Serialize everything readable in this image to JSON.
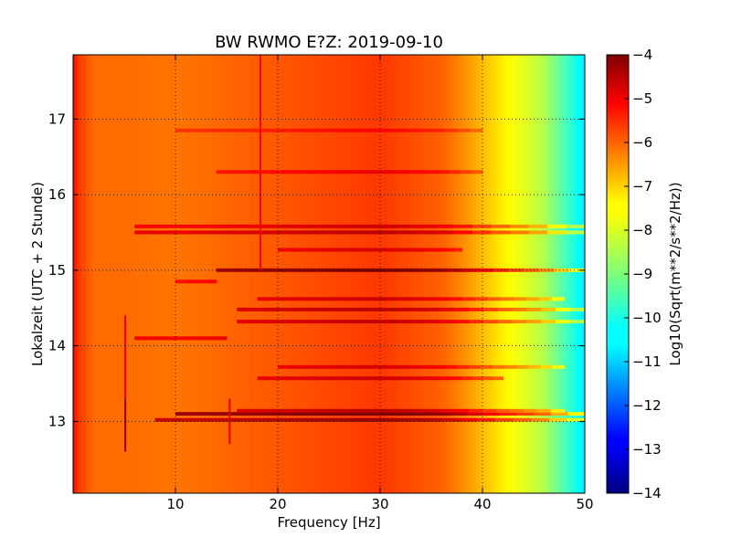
{
  "chart_data": {
    "type": "heatmap",
    "title": "BW RWMO E?Z: 2019-09-10",
    "xlabel": "Frequency [Hz]",
    "ylabel": "Lokalzeit (UTC + 2 Stunde)",
    "xlim": [
      0,
      50
    ],
    "ylim": [
      17.85,
      12.05
    ],
    "y_inverted": true,
    "grid": true,
    "x_ticks": [
      10,
      20,
      30,
      40,
      50
    ],
    "y_ticks": [
      13,
      14,
      15,
      16,
      17
    ],
    "x_tick_labels": [
      "10",
      "20",
      "30",
      "40",
      "50"
    ],
    "y_tick_labels": [
      "13",
      "14",
      "15",
      "16",
      "17"
    ],
    "colormap": "jet",
    "colorbar": {
      "label": "Log10(Sqrt(m**2/s**2/Hz))",
      "range": [
        -14,
        -4
      ],
      "ticks": [
        -4,
        -5,
        -6,
        -7,
        -8,
        -9,
        -10,
        -11,
        -12,
        -13,
        -14
      ],
      "tick_labels": [
        "−4",
        "−5",
        "−6",
        "−7",
        "−8",
        "−9",
        "−10",
        "−11",
        "−12",
        "−13",
        "−14"
      ]
    },
    "spectral_profile": {
      "frequency_hz": [
        0,
        0.5,
        2,
        5,
        10,
        20,
        30,
        36,
        38,
        40,
        42,
        44,
        46,
        48,
        50
      ],
      "level": [
        -5.2,
        -5.8,
        -6.3,
        -6.3,
        -6.4,
        -6.1,
        -5.8,
        -6.2,
        -6.6,
        -7.1,
        -7.6,
        -8.0,
        -8.5,
        -9.5,
        -10.5
      ]
    },
    "bands": [
      {
        "time": 13.02,
        "fmin": 8,
        "fmax": 50,
        "level": -4.6
      },
      {
        "time": 13.1,
        "fmin": 10,
        "fmax": 50,
        "level": -4.2
      },
      {
        "time": 13.14,
        "fmin": 16,
        "fmax": 48,
        "level": -4.9
      },
      {
        "time": 13.57,
        "fmin": 18,
        "fmax": 42,
        "level": -5.1
      },
      {
        "time": 13.72,
        "fmin": 20,
        "fmax": 48,
        "level": -5.2
      },
      {
        "time": 14.1,
        "fmin": 6,
        "fmax": 15,
        "level": -5.0
      },
      {
        "time": 14.32,
        "fmin": 16,
        "fmax": 50,
        "level": -5.0
      },
      {
        "time": 14.48,
        "fmin": 16,
        "fmax": 50,
        "level": -4.9
      },
      {
        "time": 14.62,
        "fmin": 18,
        "fmax": 48,
        "level": -5.1
      },
      {
        "time": 14.85,
        "fmin": 10,
        "fmax": 14,
        "level": -5.2
      },
      {
        "time": 15.0,
        "fmin": 14,
        "fmax": 50,
        "level": -4.4
      },
      {
        "time": 15.27,
        "fmin": 20,
        "fmax": 38,
        "level": -5.2
      },
      {
        "time": 15.5,
        "fmin": 6,
        "fmax": 50,
        "level": -4.9
      },
      {
        "time": 15.58,
        "fmin": 6,
        "fmax": 50,
        "level": -5.1
      },
      {
        "time": 16.3,
        "fmin": 14,
        "fmax": 40,
        "level": -5.4
      },
      {
        "time": 16.85,
        "fmin": 10,
        "fmax": 40,
        "level": -5.6
      }
    ],
    "vertical_lines": [
      {
        "frequency": 5.1,
        "tmin": 12.6,
        "tmax": 13.3,
        "level": -4.2
      },
      {
        "frequency": 5.1,
        "tmin": 13.3,
        "tmax": 14.4,
        "level": -5.0
      },
      {
        "frequency": 15.3,
        "tmin": 12.7,
        "tmax": 13.3,
        "level": -5.0
      },
      {
        "frequency": 18.3,
        "tmin": 15.0,
        "tmax": 17.85,
        "level": -5.2
      }
    ]
  }
}
